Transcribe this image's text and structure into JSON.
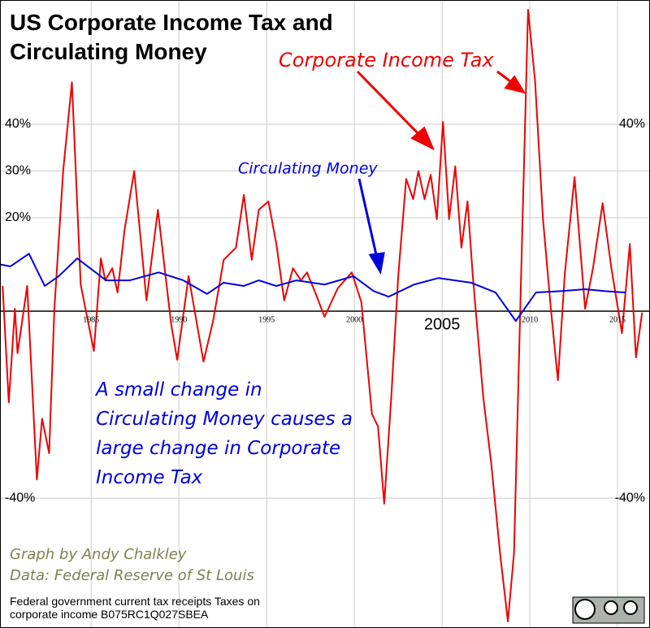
{
  "chart_data": {
    "type": "line",
    "title": "US Corporate Income Tax and Circulating Money",
    "annotation": "A small change in Circulating Money causes a large change in Corporate Income Tax",
    "credit": "Graph by Andy Chalkley",
    "data_source": "Data: Federal Reserve of St Louis",
    "source_note": "Federal government current tax receipts Taxes on corporate income B075RC1Q027SBEA",
    "xlim": [
      1979.8,
      2016.85
    ],
    "xticks": [
      1985,
      1990,
      1995,
      2000,
      2005,
      2010,
      2015
    ],
    "ylim": [
      -67.8,
      66.6
    ],
    "yticks": [
      {
        "value": -40,
        "label": "-40%"
      },
      {
        "value": 20,
        "label": "20%"
      },
      {
        "value": 30,
        "label": "30%"
      },
      {
        "value": 40,
        "label": "40%"
      }
    ],
    "y2lim": [
      -67.8,
      66.6
    ],
    "y2ticks": [
      {
        "value": -40,
        "label": "-40%"
      },
      {
        "value": 40,
        "label": "40%"
      }
    ],
    "grid": true,
    "series": [
      {
        "name": "Corporate Income Tax",
        "color": "#ee0000",
        "x": [
          1979.95,
          1980.3,
          1980.65,
          1980.8,
          1981.35,
          1981.9,
          1982.2,
          1982.6,
          1982.9,
          1983.4,
          1983.9,
          1984.4,
          1985.15,
          1985.55,
          1985.8,
          1986.2,
          1986.5,
          1986.9,
          1987.45,
          1988.15,
          1988.8,
          1989.55,
          1989.9,
          1990.55,
          1991.4,
          1991.95,
          1992.55,
          1993.25,
          1993.7,
          1994.15,
          1994.55,
          1995.1,
          1995.55,
          1996,
          1996.5,
          1996.95,
          1997.3,
          1997.8,
          1998.3,
          1999.05,
          1999.85,
          2000.4,
          2001,
          2001.35,
          2001.7,
          2002.1,
          2002.5,
          2002.95,
          2003.35,
          2003.65,
          2004,
          2004.35,
          2004.7,
          2005.05,
          2005.4,
          2005.75,
          2006.1,
          2006.45,
          2006.75,
          2007.35,
          2007.8,
          2008.3,
          2008.75,
          2009.1,
          2009.55,
          2009.9,
          2010.3,
          2010.75,
          2011.2,
          2011.6,
          2012,
          2012.55,
          2013.15,
          2013.6,
          2014.15,
          2014.65,
          2015.25,
          2015.7,
          2016.05,
          2016.4
        ],
        "values": [
          5.4,
          -19.5,
          0.5,
          -9,
          5.4,
          -36,
          -23,
          -30.4,
          0.5,
          30,
          49,
          5.7,
          -8.5,
          11.3,
          6.6,
          9.2,
          4,
          17.4,
          30,
          2.3,
          21.7,
          -2.6,
          -10.4,
          7.5,
          -10.8,
          -2,
          11,
          13.6,
          24.9,
          11,
          21.7,
          23.5,
          14.4,
          2.3,
          9.2,
          6.6,
          8.3,
          3.7,
          -1.2,
          4.9,
          8.3,
          1.9,
          -22,
          -24.7,
          -41.2,
          -18.6,
          7.5,
          28.3,
          24,
          30,
          24,
          29.2,
          19.7,
          40.5,
          19.7,
          31,
          13.6,
          23.5,
          7.5,
          -18.6,
          -32.5,
          -51.7,
          -66.4,
          -51.7,
          14.4,
          64.5,
          49.2,
          19.7,
          0.5,
          -14.8,
          8.3,
          28.7,
          0.5,
          9.2,
          23.1,
          9.2,
          -4.7,
          14.4,
          -9.9,
          -0.3
        ]
      },
      {
        "name": "Circulating Money",
        "color": "#0000dd",
        "x": [
          1979.8,
          1980.4,
          1981.45,
          1982.35,
          1983.15,
          1984.2,
          1985.85,
          1987.2,
          1988.85,
          1990.25,
          1991.6,
          1992.55,
          1993.7,
          1994.55,
          1995.55,
          1996.7,
          1998.3,
          1999.95,
          2001.1,
          2001.95,
          2003.4,
          2004.8,
          2006.65,
          2008.05,
          2009.2,
          2010.35,
          2011.75,
          2013.15,
          2014.3,
          2015.45
        ],
        "values": [
          10,
          9.6,
          12.3,
          5.4,
          7.5,
          11.3,
          6.6,
          6.6,
          8.3,
          6.6,
          3.7,
          6.1,
          5.4,
          6.6,
          5.4,
          6.6,
          5.7,
          7.5,
          4.3,
          3.1,
          5.7,
          7.1,
          6.1,
          4,
          -2.1,
          4,
          4.3,
          4.7,
          4.3,
          4
        ]
      }
    ]
  }
}
